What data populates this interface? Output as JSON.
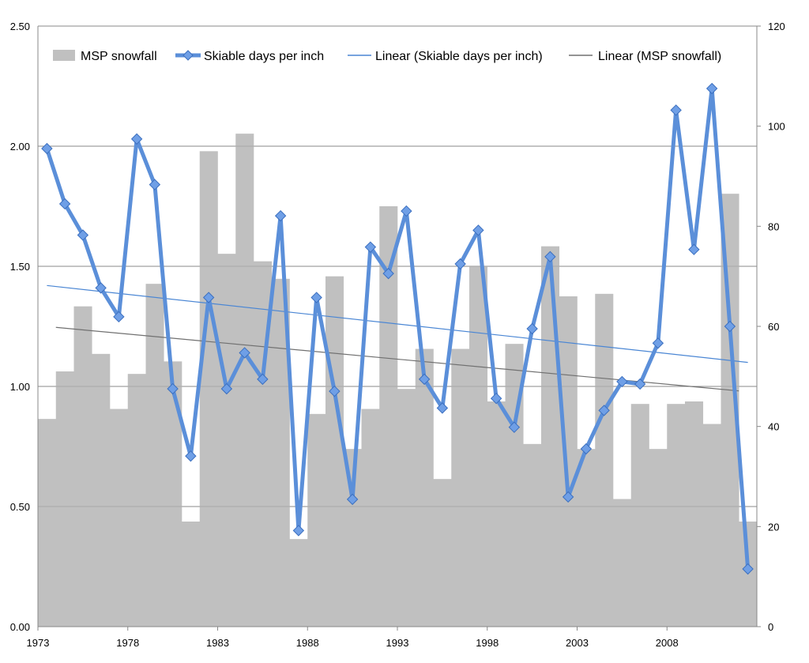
{
  "chart_data": {
    "type": "bar+line",
    "title": "",
    "x": [
      1973,
      1974,
      1975,
      1976,
      1977,
      1978,
      1979,
      1980,
      1981,
      1982,
      1983,
      1984,
      1985,
      1986,
      1987,
      1988,
      1989,
      1990,
      1991,
      1992,
      1993,
      1994,
      1995,
      1996,
      1997,
      1998,
      1999,
      2000,
      2001,
      2002,
      2003,
      2004,
      2005,
      2006,
      2007,
      2008,
      2009,
      2010,
      2011,
      2012
    ],
    "x_tick_labels": [
      "1973",
      "1978",
      "1983",
      "1988",
      "1993",
      "1998",
      "2003",
      "2008"
    ],
    "y_left": {
      "range": [
        0,
        2.5
      ],
      "tick_labels": [
        "0.00",
        "0.50",
        "1.00",
        "1.50",
        "2.00",
        "2.50"
      ]
    },
    "y_right": {
      "range": [
        0,
        120
      ],
      "tick_labels": [
        "0",
        "20",
        "40",
        "60",
        "80",
        "100",
        "120"
      ]
    },
    "legend": {
      "placement": "top",
      "entries": [
        "MSP snowfall",
        "Skiable days per inch",
        "Linear (Skiable days per inch)",
        "Linear (MSP snowfall)"
      ]
    },
    "series": [
      {
        "name": "MSP snowfall",
        "type": "bar",
        "axis": "right",
        "color": "#c0c0c0",
        "values": [
          41.5,
          51,
          64,
          54.5,
          43.5,
          50.5,
          68.5,
          53,
          21,
          95,
          74.5,
          98.5,
          73,
          69.5,
          17.5,
          42.5,
          70,
          35.5,
          43.5,
          84,
          47.5,
          55.5,
          29.5,
          55.5,
          72,
          45,
          56.5,
          36.5,
          76,
          66,
          35.5,
          66.5,
          25.5,
          44.5,
          35.5,
          44.5,
          45,
          40.5,
          86.5,
          21
        ]
      },
      {
        "name": "Skiable days per inch",
        "type": "line",
        "axis": "left",
        "color": "#5b8fd9",
        "marker_color": "#6f9fe6",
        "values": [
          1.99,
          1.76,
          1.63,
          1.41,
          1.29,
          2.03,
          1.84,
          0.99,
          0.71,
          1.37,
          0.99,
          1.14,
          1.03,
          1.71,
          0.4,
          1.37,
          0.98,
          0.53,
          1.58,
          1.47,
          1.73,
          1.03,
          0.91,
          1.51,
          1.65,
          0.95,
          0.83,
          1.24,
          1.54,
          0.54,
          0.74,
          0.9,
          1.02,
          1.01,
          1.18,
          2.15,
          1.57,
          2.24,
          1.25,
          0.24
        ]
      },
      {
        "name": "Linear (Skiable days per inch)",
        "type": "trendline",
        "axis": "left",
        "color": "#4a86d4",
        "start": [
          1973,
          1.42
        ],
        "end": [
          2012,
          1.1
        ]
      },
      {
        "name": "Linear (MSP snowfall)",
        "type": "trendline",
        "axis": "right",
        "color": "#707070",
        "start": [
          1973.5,
          59.8
        ],
        "end": [
          2011.5,
          47.1
        ]
      }
    ]
  }
}
